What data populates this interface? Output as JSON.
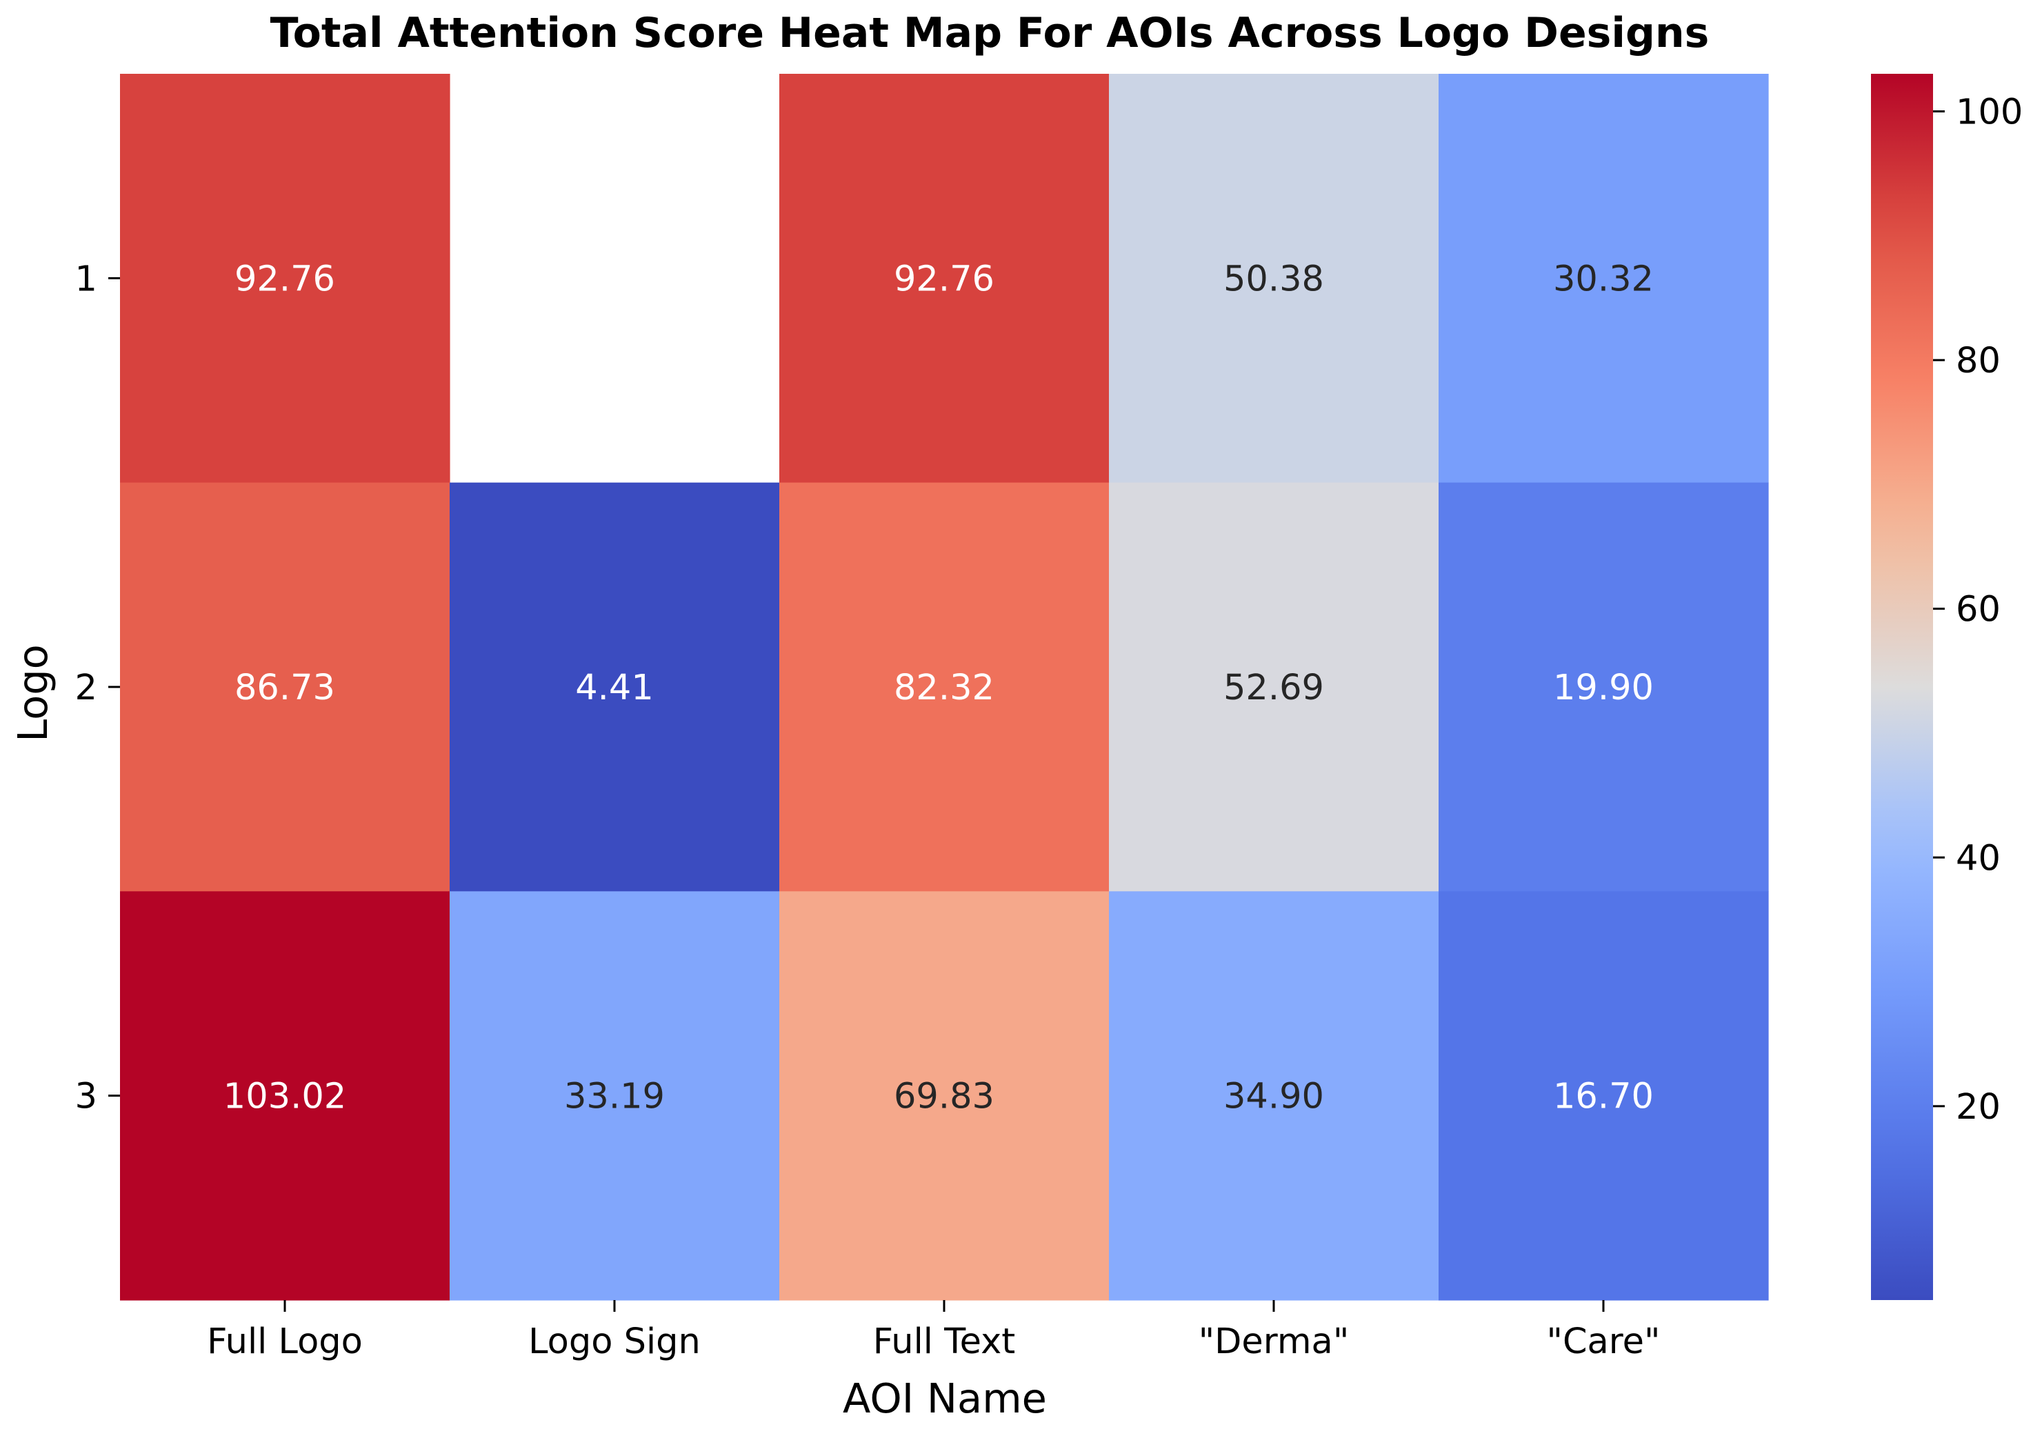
{
  "chart_data": {
    "type": "heatmap",
    "title": "Total Attention Score Heat Map For AOIs Across Logo Designs",
    "xlabel": "AOI Name",
    "ylabel": "Logo",
    "x_categories": [
      "Full Logo",
      "Logo Sign",
      "Full Text",
      "\"Derma\"",
      "\"Care\""
    ],
    "y_categories": [
      "1",
      "2",
      "3"
    ],
    "values": [
      [
        92.76,
        null,
        92.76,
        50.38,
        30.32
      ],
      [
        86.73,
        4.41,
        82.32,
        52.69,
        19.9
      ],
      [
        103.02,
        33.19,
        69.83,
        34.9,
        16.7
      ]
    ],
    "value_labels": [
      [
        "92.76",
        "",
        "92.76",
        "50.38",
        "30.32"
      ],
      [
        "86.73",
        "4.41",
        "82.32",
        "52.69",
        "19.90"
      ],
      [
        "103.02",
        "33.19",
        "69.83",
        "34.90",
        "16.70"
      ]
    ],
    "colormap": "coolwarm",
    "vmin": 4.41,
    "vmax": 103.02,
    "colorbar_ticks": [
      20,
      40,
      60,
      80,
      100
    ],
    "grid": false
  }
}
